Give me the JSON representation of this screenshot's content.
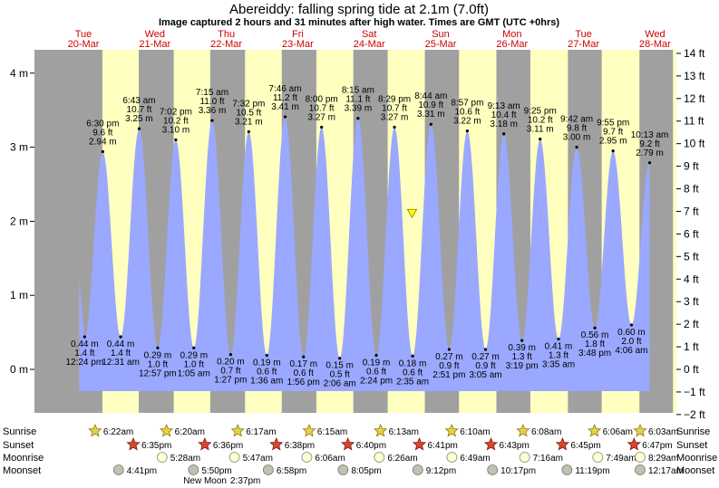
{
  "title": "Abereiddy: falling  spring tide at 2.1m (7.0ft)",
  "subtitle": "Image captured 2 hours and 31 minutes after high water. Times are GMT (UTC +0hrs)",
  "colors": {
    "night": "#a0a0a0",
    "day": "#ffffc0",
    "tide_fill": "#9aa8ff",
    "day_label": "#cc0000",
    "marker": "#ffff00"
  },
  "current_marker": {
    "day": 4.6,
    "height_m": 2.1
  },
  "day_columns": [
    {
      "day": "Tue",
      "date": "20-Mar"
    },
    {
      "day": "Wed",
      "date": "21-Mar"
    },
    {
      "day": "Thu",
      "date": "22-Mar"
    },
    {
      "day": "Fri",
      "date": "23-Mar"
    },
    {
      "day": "Sat",
      "date": "24-Mar"
    },
    {
      "day": "Sun",
      "date": "25-Mar"
    },
    {
      "day": "Mon",
      "date": "26-Mar"
    },
    {
      "day": "Tue",
      "date": "27-Mar"
    },
    {
      "day": "Wed",
      "date": "28-Mar"
    }
  ],
  "chart_data": {
    "type": "area",
    "title": "Abereiddy: falling  spring tide at 2.1m (7.0ft)",
    "x_unit": "days from 20-Mar 00:00 GMT",
    "xlim": [
      -0.2,
      8.2
    ],
    "ylim_m": [
      -0.65,
      4.1
    ],
    "y_left_ticks": [
      {
        "v": 0,
        "label": "0 m"
      },
      {
        "v": 1,
        "label": "1 m"
      },
      {
        "v": 2,
        "label": "2 m"
      },
      {
        "v": 3,
        "label": "3 m"
      },
      {
        "v": 4,
        "label": "4 m"
      }
    ],
    "y_right_ticks": [
      {
        "v": -2,
        "label": "−2 ft"
      },
      {
        "v": -1,
        "label": "−1 ft"
      },
      {
        "v": 0,
        "label": "0 ft"
      },
      {
        "v": 1,
        "label": "1 ft"
      },
      {
        "v": 2,
        "label": "2 ft"
      },
      {
        "v": 3,
        "label": "3 ft"
      },
      {
        "v": 4,
        "label": "4 ft"
      },
      {
        "v": 5,
        "label": "5 ft"
      },
      {
        "v": 6,
        "label": "6 ft"
      },
      {
        "v": 7,
        "label": "7 ft"
      },
      {
        "v": 8,
        "label": "8 ft"
      },
      {
        "v": 9,
        "label": "9 ft"
      },
      {
        "v": 10,
        "label": "10 ft"
      },
      {
        "v": 11,
        "label": "11 ft"
      },
      {
        "v": 12,
        "label": "12 ft"
      },
      {
        "v": 13,
        "label": "13 ft"
      },
      {
        "v": 14,
        "label": "14 ft"
      }
    ],
    "extremes": [
      {
        "type": "low",
        "day": 0.0167,
        "m": 0.44,
        "time": "12:24 pm",
        "ft": "1.4 ft",
        "mlabel": "0.44 m"
      },
      {
        "type": "high",
        "day": 0.2708,
        "m": 2.94,
        "time": "6:30 pm",
        "ft": "9.6 ft",
        "mlabel": "2.94 m"
      },
      {
        "type": "low",
        "day": 0.5215,
        "m": 0.44,
        "time": "12:31 am",
        "ft": "1.4 ft",
        "mlabel": "0.44 m"
      },
      {
        "type": "high",
        "day": 0.7799,
        "m": 3.25,
        "time": "6:43 am",
        "ft": "10.7 ft",
        "mlabel": "3.25 m"
      },
      {
        "type": "low",
        "day": 1.0396,
        "m": 0.29,
        "time": "12:57 pm",
        "ft": "1.0 ft",
        "mlabel": "0.29 m"
      },
      {
        "type": "high",
        "day": 1.2931,
        "m": 3.1,
        "time": "7:02 pm",
        "ft": "10.2 ft",
        "mlabel": "3.10 m"
      },
      {
        "type": "low",
        "day": 1.5451,
        "m": 0.29,
        "time": "1:05 am",
        "ft": "1.0 ft",
        "mlabel": "0.29 m"
      },
      {
        "type": "high",
        "day": 1.8021,
        "m": 3.36,
        "time": "7:15 am",
        "ft": "11.0 ft",
        "mlabel": "3.36 m"
      },
      {
        "type": "low",
        "day": 2.0604,
        "m": 0.2,
        "time": "1:27 pm",
        "ft": "0.7 ft",
        "mlabel": "0.20 m"
      },
      {
        "type": "high",
        "day": 2.3139,
        "m": 3.21,
        "time": "7:32 pm",
        "ft": "10.5 ft",
        "mlabel": "3.21 m"
      },
      {
        "type": "low",
        "day": 2.5667,
        "m": 0.19,
        "time": "1:36 am",
        "ft": "0.6 ft",
        "mlabel": "0.19 m"
      },
      {
        "type": "high",
        "day": 2.8236,
        "m": 3.41,
        "time": "7:46 am",
        "ft": "11.2 ft",
        "mlabel": "3.41 m"
      },
      {
        "type": "low",
        "day": 3.0806,
        "m": 0.17,
        "time": "1:56 pm",
        "ft": "0.6 ft",
        "mlabel": "0.17 m"
      },
      {
        "type": "high",
        "day": 3.3333,
        "m": 3.27,
        "time": "8:00 pm",
        "ft": "10.7 ft",
        "mlabel": "3.27 m"
      },
      {
        "type": "low",
        "day": 3.5875,
        "m": 0.15,
        "time": "2:06 am",
        "ft": "0.5 ft",
        "mlabel": "0.15 m"
      },
      {
        "type": "high",
        "day": 3.8438,
        "m": 3.39,
        "time": "8:15 am",
        "ft": "11.1 ft",
        "mlabel": "3.39 m"
      },
      {
        "type": "low",
        "day": 4.1,
        "m": 0.19,
        "time": "2:24 pm",
        "ft": "0.6 ft",
        "mlabel": "0.19 m"
      },
      {
        "type": "high",
        "day": 4.3535,
        "m": 3.27,
        "time": "8:29 pm",
        "ft": "10.7 ft",
        "mlabel": "3.27 m"
      },
      {
        "type": "low",
        "day": 4.6076,
        "m": 0.18,
        "time": "2:35 am",
        "ft": "0.6 ft",
        "mlabel": "0.18 m"
      },
      {
        "type": "high",
        "day": 4.8639,
        "m": 3.31,
        "time": "8:44 am",
        "ft": "10.9 ft",
        "mlabel": "3.31 m"
      },
      {
        "type": "low",
        "day": 5.1188,
        "m": 0.27,
        "time": "2:51 pm",
        "ft": "0.9 ft",
        "mlabel": "0.27 m"
      },
      {
        "type": "high",
        "day": 5.3729,
        "m": 3.22,
        "time": "8:57 pm",
        "ft": "10.6 ft",
        "mlabel": "3.22 m"
      },
      {
        "type": "low",
        "day": 5.6285,
        "m": 0.27,
        "time": "3:05 am",
        "ft": "0.9 ft",
        "mlabel": "0.27 m"
      },
      {
        "type": "high",
        "day": 5.884,
        "m": 3.18,
        "time": "9:13 am",
        "ft": "10.4 ft",
        "mlabel": "3.18 m"
      },
      {
        "type": "low",
        "day": 6.1382,
        "m": 0.39,
        "time": "3:19 pm",
        "ft": "1.3 ft",
        "mlabel": "0.39 m"
      },
      {
        "type": "high",
        "day": 6.3924,
        "m": 3.11,
        "time": "9:25 pm",
        "ft": "10.2 ft",
        "mlabel": "3.11 m"
      },
      {
        "type": "low",
        "day": 6.6493,
        "m": 0.41,
        "time": "3:35 am",
        "ft": "1.3 ft",
        "mlabel": "0.41 m"
      },
      {
        "type": "high",
        "day": 6.9042,
        "m": 3.0,
        "time": "9:42 am",
        "ft": "9.8 ft",
        "mlabel": "3.00 m"
      },
      {
        "type": "low",
        "day": 7.1583,
        "m": 0.56,
        "time": "3:48 pm",
        "ft": "1.8 ft",
        "mlabel": "0.56 m"
      },
      {
        "type": "high",
        "day": 7.4132,
        "m": 2.95,
        "time": "9:55 pm",
        "ft": "9.7 ft",
        "mlabel": "2.95 m"
      },
      {
        "type": "low",
        "day": 7.6708,
        "m": 0.6,
        "time": "4:06 am",
        "ft": "2.0 ft",
        "mlabel": "0.60 m"
      },
      {
        "type": "high",
        "day": 7.9257,
        "m": 2.79,
        "time": "10:13 am",
        "ft": "9.2 ft",
        "mlabel": "2.79 m"
      }
    ]
  },
  "rows": {
    "sunrise_label": "Sunrise",
    "sunset_label": "Sunset",
    "moonrise_label": "Moonrise",
    "moonset_label": "Moonset",
    "sunrise": [
      {
        "day": 0.2653,
        "time": "6:22am"
      },
      {
        "day": 1.2639,
        "time": "6:20am"
      },
      {
        "day": 2.2618,
        "time": "6:17am"
      },
      {
        "day": 3.2604,
        "time": "6:15am"
      },
      {
        "day": 4.259,
        "time": "6:13am"
      },
      {
        "day": 5.2569,
        "time": "6:10am"
      },
      {
        "day": 6.2556,
        "time": "6:08am"
      },
      {
        "day": 7.2542,
        "time": "6:06am"
      },
      {
        "day": 8.2521,
        "time": "6:03am"
      }
    ],
    "sunset": [
      {
        "day": 0.7743,
        "time": "6:35pm"
      },
      {
        "day": 1.775,
        "time": "6:36pm"
      },
      {
        "day": 2.7764,
        "time": "6:38pm"
      },
      {
        "day": 3.7778,
        "time": "6:40pm"
      },
      {
        "day": 4.7785,
        "time": "6:41pm"
      },
      {
        "day": 5.7799,
        "time": "6:43pm"
      },
      {
        "day": 6.7813,
        "time": "6:45pm"
      },
      {
        "day": 7.7826,
        "time": "6:47pm"
      }
    ],
    "moonrise": [
      {
        "day": 1.2278,
        "time": "5:28am"
      },
      {
        "day": 2.241,
        "time": "5:47am"
      },
      {
        "day": 3.2542,
        "time": "6:06am"
      },
      {
        "day": 4.2681,
        "time": "6:26am"
      },
      {
        "day": 5.284,
        "time": "6:49am"
      },
      {
        "day": 6.3028,
        "time": "7:16am"
      },
      {
        "day": 7.3257,
        "time": "7:49am"
      },
      {
        "day": 8.3535,
        "time": "8:29am"
      }
    ],
    "moonset": [
      {
        "day": 0.6951,
        "time": "4:41pm"
      },
      {
        "day": 1.7431,
        "time": "5:50pm"
      },
      {
        "day": 2.7903,
        "time": "6:58pm"
      },
      {
        "day": 3.8368,
        "time": "8:05pm"
      },
      {
        "day": 4.8833,
        "time": "9:12pm"
      },
      {
        "day": 5.9285,
        "time": "10:17pm"
      },
      {
        "day": 6.9715,
        "time": "11:19pm"
      },
      {
        "day": 8.0118,
        "time": "12:17am"
      }
    ]
  },
  "new_moon_label": "New Moon",
  "new_moon_time": "2:37pm"
}
